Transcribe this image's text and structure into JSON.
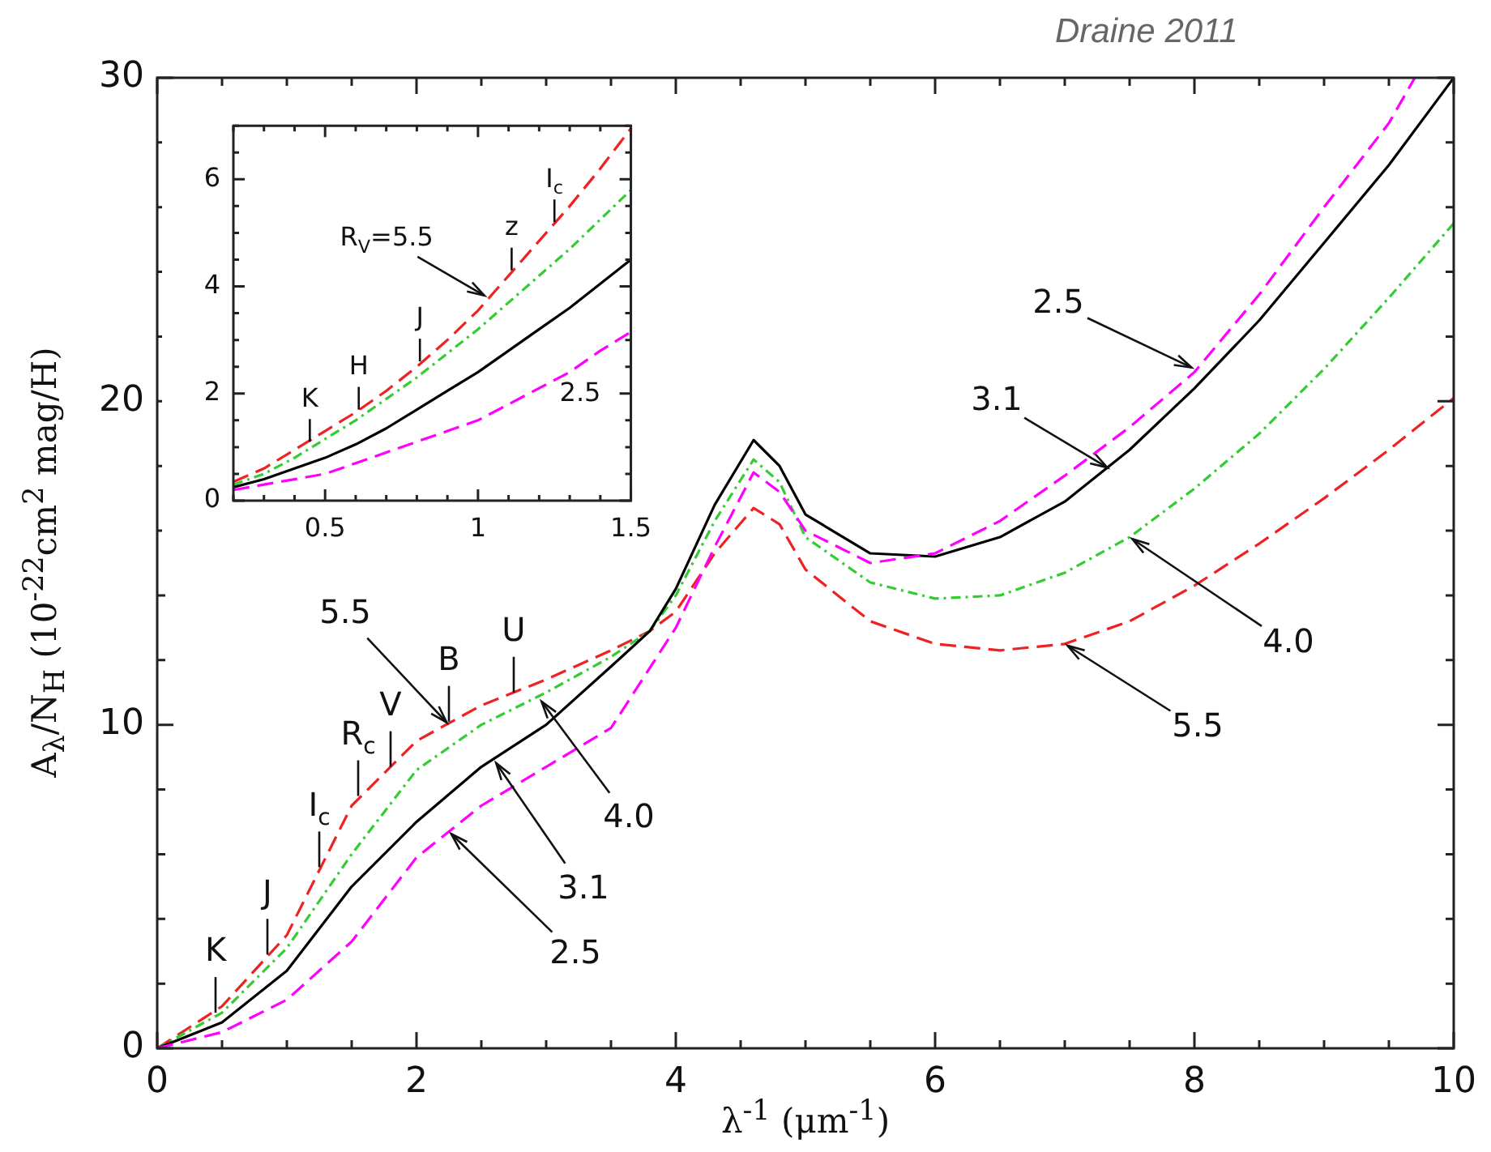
{
  "chart_data": [
    {
      "type": "line",
      "xlabel": "λ$^{-1}$ (μm$^{-1}$)",
      "ylabel": "A$_{λ}$/N$_{H}$ (10$^{-22}$cm$^{2}$ mag/H)",
      "xlim": [
        0,
        10
      ],
      "ylim": [
        0,
        30
      ],
      "xticks": [
        0,
        {
          "value": 0.5,
          "label": null
        },
        {
          "value": 1,
          "label": null
        },
        {
          "value": 1.5,
          "label": null
        },
        2,
        {
          "value": 2.5,
          "label": null
        },
        {
          "value": 3,
          "label": null
        },
        {
          "value": 3.5,
          "label": null
        },
        4,
        {
          "value": 4.5,
          "label": null
        },
        {
          "value": 5,
          "label": null
        },
        {
          "value": 5.5,
          "label": null
        },
        6,
        {
          "value": 6.5,
          "label": null
        },
        {
          "value": 7,
          "label": null
        },
        {
          "value": 7.5,
          "label": null
        },
        8,
        {
          "value": 8.5,
          "label": null
        },
        {
          "value": 9,
          "label": null
        },
        {
          "value": 9.5,
          "label": null
        },
        10
      ],
      "yticks": [
        0,
        {
          "value": 2,
          "label": null
        },
        {
          "value": 4,
          "label": null
        },
        {
          "value": 6,
          "label": null
        },
        {
          "value": 8,
          "label": null
        },
        10,
        {
          "value": 12,
          "label": null
        },
        {
          "value": 14,
          "label": null
        },
        {
          "value": 16,
          "label": null
        },
        {
          "value": 18,
          "label": null
        },
        20,
        {
          "value": 22,
          "label": null
        },
        {
          "value": 24,
          "label": null
        },
        {
          "value": 26,
          "label": null
        },
        {
          "value": 28,
          "label": null
        },
        30
      ],
      "marker": "none",
      "x": [
        0,
        0.5,
        1,
        1.5,
        2,
        2.5,
        3,
        3.5,
        3.8,
        4,
        4.3,
        4.6,
        4.8,
        5,
        5.5,
        6,
        6.5,
        7,
        7.5,
        8,
        8.5,
        9,
        9.5,
        10
      ],
      "series": [
        {
          "color": "#ff00ff",
          "line_style": "dashed",
          "x": [
            0,
            0.5,
            1,
            1.5,
            2,
            2.5,
            3,
            3.5,
            4,
            4.3,
            4.6,
            4.8,
            5,
            5.5,
            6,
            6.5,
            7,
            7.5,
            8,
            8.5,
            9,
            9.5,
            9.7
          ],
          "values": [
            0,
            0.5,
            1.5,
            3.3,
            5.9,
            7.5,
            8.7,
            9.9,
            13.0,
            15.5,
            17.8,
            17.2,
            16.0,
            15.0,
            15.3,
            16.3,
            17.7,
            19.2,
            20.9,
            23.3,
            26.0,
            28.6,
            30
          ]
        },
        {
          "color": "#000000",
          "line_style": "solid",
          "values": [
            0,
            0.8,
            2.4,
            5.0,
            7.0,
            8.7,
            10.0,
            11.8,
            12.9,
            14.2,
            16.8,
            18.8,
            18.0,
            16.5,
            15.3,
            15.2,
            15.8,
            16.9,
            18.5,
            20.4,
            22.5,
            24.9,
            27.3,
            30
          ]
        },
        {
          "color": "#33cc33",
          "line_style": "dotted",
          "values": [
            0,
            1.1,
            3.1,
            6.0,
            8.6,
            10.0,
            11.0,
            12.1,
            12.9,
            14.0,
            16.3,
            18.2,
            17.5,
            15.8,
            14.4,
            13.9,
            14.0,
            14.7,
            15.8,
            17.3,
            19.0,
            21.0,
            23.2,
            25.5
          ]
        },
        {
          "color": "#ee2222",
          "line_style": "dashed",
          "values": [
            0,
            1.3,
            3.5,
            7.5,
            9.5,
            10.6,
            11.4,
            12.3,
            12.9,
            13.5,
            15.3,
            16.7,
            16.2,
            14.8,
            13.2,
            12.5,
            12.3,
            12.5,
            13.2,
            14.3,
            15.6,
            17.0,
            18.5,
            20.1
          ]
        }
      ],
      "annotations": [
        {
          "text": "K",
          "x": 0.45,
          "y": 1.1
        },
        {
          "text": "J",
          "x": 0.85,
          "y": 2.9
        },
        {
          "text": "I$_{c}$",
          "x": 1.25,
          "y": 5.6
        },
        {
          "text": "R$_{c}$",
          "x": 1.55,
          "y": 7.8
        },
        {
          "text": "V",
          "x": 1.8,
          "y": 8.7
        },
        {
          "text": "B",
          "x": 2.25,
          "y": 10.1
        },
        {
          "text": "U",
          "x": 2.75,
          "y": 11.0
        },
        {
          "text": "5.5",
          "x": 2.25,
          "y": 10.0
        },
        {
          "text": "4.0",
          "x": 2.95,
          "y": 10.8
        },
        {
          "text": "3.1",
          "x": 2.6,
          "y": 8.9
        },
        {
          "text": "2.5",
          "x": 2.25,
          "y": 6.7
        },
        {
          "text": "2.5",
          "x": 8.0,
          "y": 21.0
        },
        {
          "text": "3.1",
          "x": 7.35,
          "y": 17.9
        },
        {
          "text": "4.0",
          "x": 7.5,
          "y": 15.8
        },
        {
          "text": "5.5",
          "x": 7.0,
          "y": 12.5
        },
        "Draine 2011"
      ]
    },
    {
      "type": "line",
      "xlim": [
        0.2,
        1.5
      ],
      "ylim": [
        0,
        7
      ],
      "xticks": [
        {
          "value": 0.2,
          "label": null
        },
        {
          "value": 0.3,
          "label": null
        },
        {
          "value": 0.4,
          "label": null
        },
        0.5,
        {
          "value": 0.6,
          "label": null
        },
        {
          "value": 0.7,
          "label": null
        },
        {
          "value": 0.8,
          "label": null
        },
        {
          "value": 0.9,
          "label": null
        },
        1,
        {
          "value": 1.1,
          "label": null
        },
        {
          "value": 1.2,
          "label": null
        },
        {
          "value": 1.3,
          "label": null
        },
        {
          "value": 1.4,
          "label": null
        },
        1.5
      ],
      "yticks": [
        0,
        {
          "value": 0.5,
          "label": null
        },
        {
          "value": 1,
          "label": null
        },
        {
          "value": 1.5,
          "label": null
        },
        2,
        {
          "value": 2.5,
          "label": null
        },
        {
          "value": 3,
          "label": null
        },
        {
          "value": 3.5,
          "label": null
        },
        4,
        {
          "value": 4.5,
          "label": null
        },
        {
          "value": 5,
          "label": null
        },
        {
          "value": 5.5,
          "label": null
        },
        6,
        {
          "value": 6.5,
          "label": null
        },
        {
          "value": 7,
          "label": null
        }
      ],
      "marker": "none",
      "x": [
        0.2,
        0.3,
        0.4,
        0.5,
        0.6,
        0.7,
        0.8,
        0.9,
        1.0,
        1.1,
        1.2,
        1.3,
        1.4,
        1.5
      ],
      "series": [
        {
          "color": "#ff00ff",
          "line_style": "dashed",
          "values": [
            0.2,
            0.3,
            0.4,
            0.5,
            0.7,
            0.9,
            1.1,
            1.3,
            1.5,
            1.8,
            2.1,
            2.4,
            2.8,
            3.15
          ]
        },
        {
          "color": "#000000",
          "line_style": "solid",
          "values": [
            0.25,
            0.4,
            0.6,
            0.8,
            1.05,
            1.35,
            1.7,
            2.05,
            2.4,
            2.8,
            3.2,
            3.6,
            4.05,
            4.5
          ]
        },
        {
          "color": "#33cc33",
          "line_style": "dotted",
          "values": [
            0.3,
            0.5,
            0.8,
            1.15,
            1.5,
            1.9,
            2.3,
            2.75,
            3.2,
            3.7,
            4.2,
            4.7,
            5.25,
            5.8
          ]
        },
        {
          "color": "#ee2222",
          "line_style": "dashed",
          "values": [
            0.35,
            0.6,
            0.95,
            1.3,
            1.65,
            2.05,
            2.5,
            3.0,
            3.55,
            4.2,
            4.85,
            5.5,
            6.2,
            6.95
          ]
        }
      ],
      "annotations": [
        {
          "text": "K",
          "x": 0.45,
          "y": 1.1
        },
        {
          "text": "H",
          "x": 0.61,
          "y": 1.7
        },
        {
          "text": "J",
          "x": 0.81,
          "y": 2.6
        },
        {
          "text": "z",
          "x": 1.11,
          "y": 4.3
        },
        {
          "text": "I$_{c}$",
          "x": 1.25,
          "y": 5.2
        },
        {
          "text": "R$_{V}$=5.5",
          "x": 1.03,
          "y": 3.8
        },
        "2.5"
      ]
    }
  ]
}
